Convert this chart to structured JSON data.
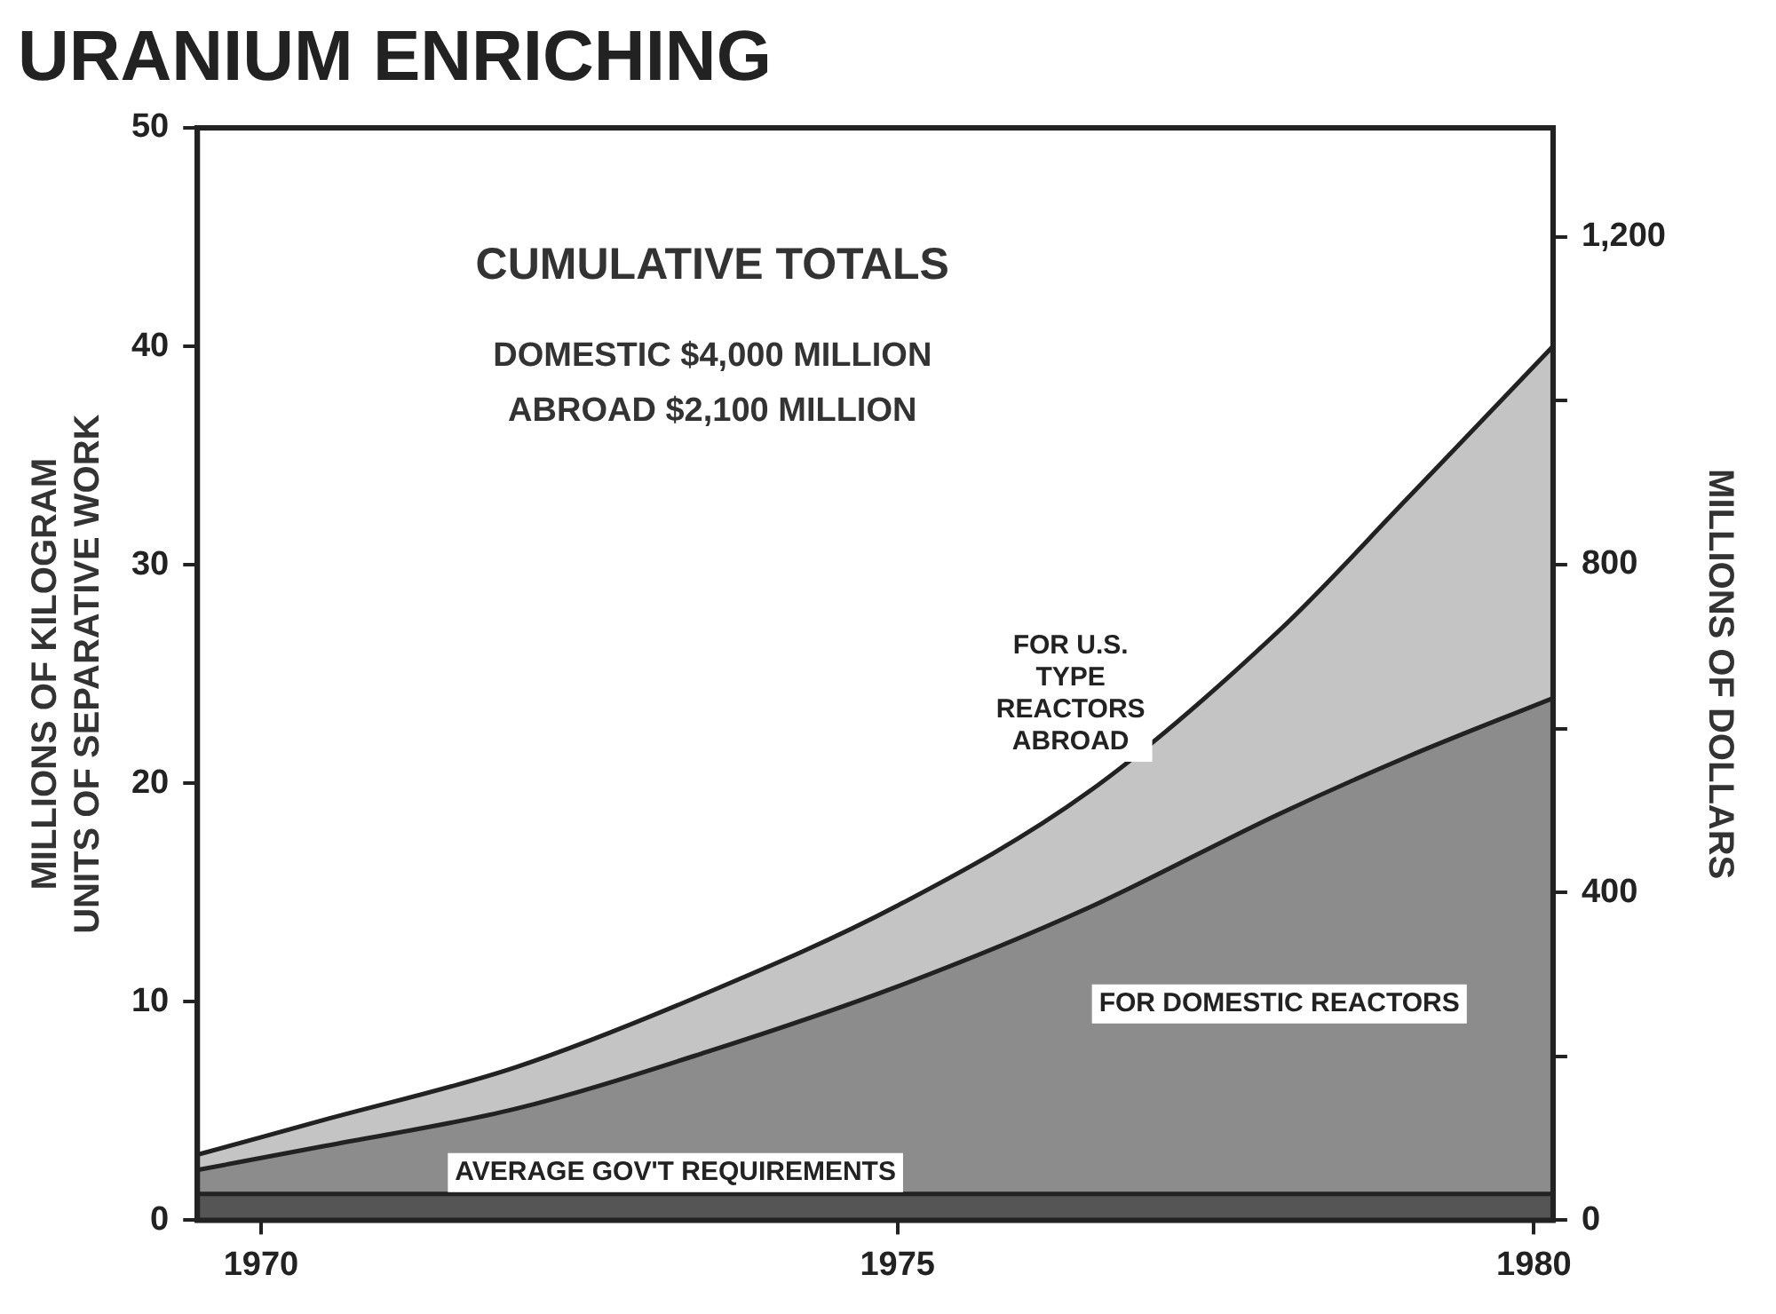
{
  "chart_data": {
    "type": "area",
    "title": "URANIUM ENRICHING",
    "ylabel": "MILLIONS OF KILOGRAM\nUNITS OF SEPARATIVE WORK",
    "y2label": "MILLIONS OF DOLLARS",
    "stacked": true,
    "legend": false,
    "grid": false,
    "x": [
      1969.5,
      1970.5,
      1972,
      1973.5,
      1975,
      1976.5,
      1978,
      1979,
      1980.15
    ],
    "series": [
      {
        "name": "AVERAGE GOV'T REQUIREMENTS",
        "color": "#555555",
        "values": [
          1.2,
          1.2,
          1.2,
          1.2,
          1.2,
          1.2,
          1.2,
          1.2,
          1.2
        ]
      },
      {
        "name": "FOR DOMESTIC REACTORS",
        "color": "#8c8c8c",
        "values": [
          1.1,
          2.2,
          3.9,
          6.5,
          9.5,
          13.1,
          17.4,
          20.0,
          22.7
        ]
      },
      {
        "name": "FOR U.S. TYPE REACTORS ABROAD",
        "color": "#c4c4c4",
        "values": [
          0.7,
          1.2,
          1.9,
          2.7,
          3.7,
          5.3,
          8.4,
          11.8,
          16.1
        ]
      }
    ],
    "xlim": [
      1969.5,
      1980.15
    ],
    "xticks": [
      1970,
      1975,
      1980
    ],
    "ylim": [
      0,
      50
    ],
    "yticks": [
      0,
      10,
      20,
      30,
      40,
      50
    ],
    "y2lim": [
      0,
      1333
    ],
    "y2ticks": [
      0,
      {
        "value": 200,
        "label": null
      },
      400,
      {
        "value": 600,
        "label": null
      },
      800,
      {
        "value": 1000,
        "label": null
      },
      {
        "value": 1200,
        "label": "1,200"
      }
    ],
    "annotations": [
      "CUMULATIVE TOTALS",
      "DOMESTIC $4,000 MILLION",
      "ABROAD $2,100 MILLION"
    ]
  }
}
